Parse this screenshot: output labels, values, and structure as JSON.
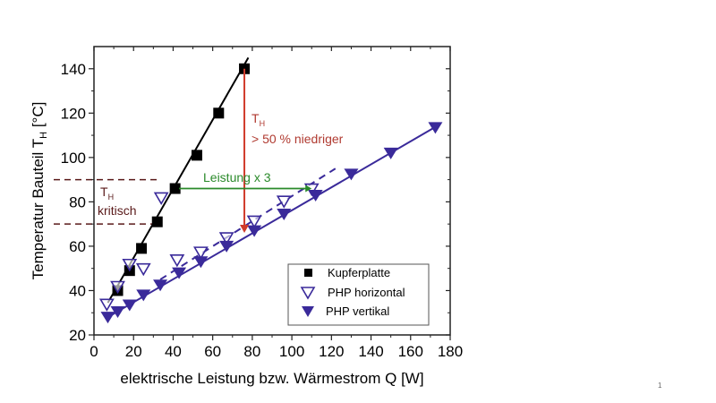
{
  "page_number": "1",
  "colors": {
    "copper": "#000000",
    "php": "#3a2a9a",
    "red_arrow": "#d03a2a",
    "red_text": "#b03a30",
    "green": "#2a8a2a",
    "critical": "#5a1a1a"
  },
  "chart_data": {
    "type": "scatter",
    "xlabel": "elektrische Leistung bzw. Wärmestrom Q [W]",
    "ylabel": "Temperatur Bauteil T",
    "ylabel_sub": "H",
    "ylabel_unit": " [°C]",
    "xlim": [
      0,
      180
    ],
    "ylim": [
      20,
      150
    ],
    "xticks": [
      0,
      20,
      40,
      60,
      80,
      100,
      120,
      140,
      160,
      180
    ],
    "yticks": [
      20,
      40,
      60,
      80,
      100,
      120,
      140
    ],
    "grid": false,
    "legend_position": "bottom-right",
    "series": [
      {
        "name": "Kupferplatte",
        "marker": "filled-square",
        "fit_line": [
          [
            7,
            34.5
          ],
          [
            78,
            145
          ]
        ],
        "fit_style": "solid",
        "points": [
          [
            12,
            40
          ],
          [
            18,
            49
          ],
          [
            24,
            59
          ],
          [
            32,
            71
          ],
          [
            41,
            86
          ],
          [
            52,
            101
          ],
          [
            63,
            120
          ],
          [
            76,
            140
          ]
        ]
      },
      {
        "name": "PHP horizontal",
        "marker": "open-triangle-down",
        "fit_line": [
          [
            33.5,
            45
          ],
          [
            122,
            95
          ]
        ],
        "fit_style": "dashed",
        "points": [
          [
            6.5,
            34
          ],
          [
            12,
            42
          ],
          [
            18,
            52
          ],
          [
            25,
            50
          ],
          [
            34,
            82
          ],
          [
            42,
            54
          ],
          [
            54,
            57.5
          ],
          [
            67,
            64
          ],
          [
            81,
            71.5
          ],
          [
            96,
            80.5
          ],
          [
            110,
            86
          ]
        ]
      },
      {
        "name": "PHP vertikal",
        "marker": "filled-triangle-down",
        "fit_line": [
          [
            7,
            28
          ],
          [
            173,
            114
          ]
        ],
        "fit_style": "solid",
        "points": [
          [
            7,
            28
          ],
          [
            12,
            30.5
          ],
          [
            18,
            33.5
          ],
          [
            25,
            38
          ],
          [
            33.5,
            42.5
          ],
          [
            43,
            48
          ],
          [
            54,
            53
          ],
          [
            67,
            60
          ],
          [
            81,
            67
          ],
          [
            96,
            74.5
          ],
          [
            112,
            83
          ],
          [
            130,
            92.5
          ],
          [
            150,
            102
          ],
          [
            172.5,
            113.5
          ]
        ]
      }
    ],
    "annotations": {
      "critical": {
        "label": "T",
        "label_sub": "H",
        "label2": "kritisch",
        "y_range": [
          70,
          90
        ],
        "x_end": 32
      },
      "reduction": {
        "label": "T",
        "label_sub": "H",
        "label2": "> 50 % niedriger",
        "x": 76,
        "y_from": 140,
        "y_to": 66
      },
      "power": {
        "label": "Leistung x 3",
        "y": 86,
        "x_from": 43,
        "x_to": 110
      }
    }
  }
}
